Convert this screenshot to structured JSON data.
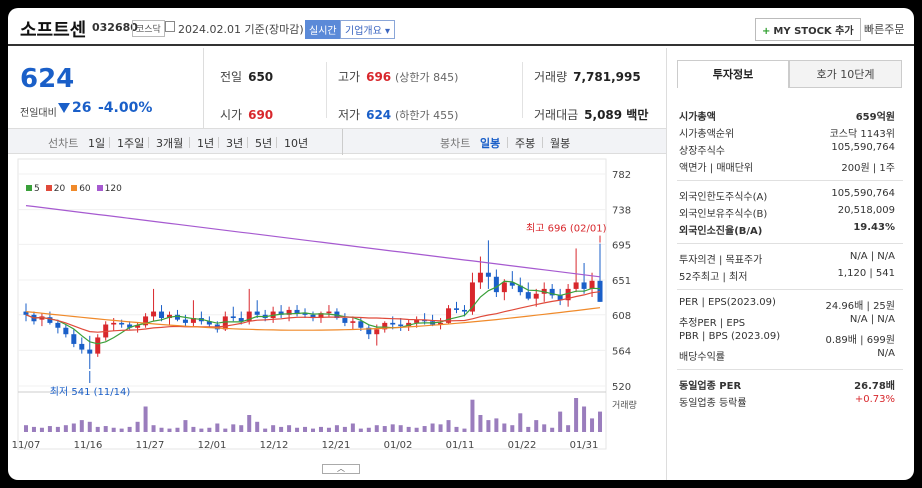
{
  "header": {
    "name": "소프트센",
    "code": "032680",
    "market": "코스닥",
    "date": "2024.02.01 기준(장마감)",
    "realtime": "실시간",
    "company_info": "기업개요",
    "mystock": "MY STOCK 추가",
    "quick_order": "빠른주문"
  },
  "price": {
    "current": "624",
    "change_label": "전일대비",
    "change": "26",
    "change_pct": "-4.00%"
  },
  "quote": {
    "prev_label": "전일",
    "prev": "650",
    "high_label": "고가",
    "high": "696",
    "upper_limit": "(상한가 845)",
    "volume_label": "거래량",
    "volume": "7,781,995",
    "open_label": "시가",
    "open": "690",
    "low_label": "저가",
    "low": "624",
    "lower_limit": "(하한가 455)",
    "amount_label": "거래대금",
    "amount": "5,089 백만"
  },
  "periods": {
    "label": "선차트",
    "items": [
      "1일",
      "1주일",
      "3개월",
      "1년",
      "3년",
      "5년",
      "10년"
    ],
    "candle_label": "봉차트",
    "candle_items": [
      "일봉",
      "주봉",
      "월봉"
    ],
    "active_candle": "일봉"
  },
  "chart_data": {
    "type": "candlestick",
    "legend": [
      "5",
      "20",
      "60",
      "120"
    ],
    "legend_colors": [
      "#3aa03a",
      "#e04a3a",
      "#f08a2a",
      "#a65ad0"
    ],
    "y_ticks": [
      782,
      738,
      695,
      651,
      608,
      564,
      520
    ],
    "ylim": [
      520,
      782
    ],
    "x_ticks": [
      "11/07",
      "11/16",
      "11/27",
      "12/01",
      "12/12",
      "12/21",
      "01/02",
      "01/11",
      "01/22",
      "01/31"
    ],
    "max_label": "최고 696 (02/01)",
    "min_label": "최저 541 (11/14)",
    "volume_label": "거래량",
    "candles": [
      [
        612,
        622,
        600,
        608
      ],
      [
        608,
        612,
        596,
        600
      ],
      [
        602,
        610,
        594,
        606
      ],
      [
        605,
        612,
        596,
        598
      ],
      [
        598,
        602,
        585,
        592
      ],
      [
        592,
        596,
        580,
        584
      ],
      [
        584,
        590,
        568,
        572
      ],
      [
        572,
        580,
        560,
        565
      ],
      [
        565,
        582,
        541,
        560
      ],
      [
        560,
        584,
        556,
        580
      ],
      [
        580,
        600,
        576,
        596
      ],
      [
        596,
        604,
        588,
        598
      ],
      [
        598,
        602,
        592,
        596
      ],
      [
        596,
        600,
        590,
        592
      ],
      [
        592,
        598,
        586,
        595
      ],
      [
        595,
        610,
        592,
        606
      ],
      [
        606,
        640,
        600,
        612
      ],
      [
        612,
        620,
        600,
        604
      ],
      [
        604,
        612,
        596,
        608
      ],
      [
        608,
        614,
        600,
        602
      ],
      [
        602,
        608,
        594,
        598
      ],
      [
        598,
        626,
        594,
        604
      ],
      [
        604,
        612,
        596,
        600
      ],
      [
        600,
        606,
        592,
        596
      ],
      [
        596,
        600,
        586,
        590
      ],
      [
        590,
        612,
        588,
        606
      ],
      [
        606,
        618,
        600,
        604
      ],
      [
        604,
        612,
        596,
        600
      ],
      [
        600,
        640,
        596,
        612
      ],
      [
        612,
        626,
        604,
        608
      ],
      [
        608,
        614,
        600,
        604
      ],
      [
        604,
        618,
        598,
        612
      ],
      [
        612,
        620,
        604,
        608
      ],
      [
        608,
        618,
        600,
        614
      ],
      [
        614,
        620,
        606,
        610
      ],
      [
        610,
        616,
        604,
        608
      ],
      [
        608,
        612,
        600,
        604
      ],
      [
        604,
        612,
        598,
        610
      ],
      [
        610,
        620,
        606,
        612
      ],
      [
        612,
        616,
        602,
        604
      ],
      [
        604,
        610,
        594,
        598
      ],
      [
        598,
        606,
        590,
        600
      ],
      [
        600,
        604,
        588,
        592
      ],
      [
        592,
        596,
        578,
        584
      ],
      [
        584,
        596,
        570,
        590
      ],
      [
        590,
        600,
        586,
        598
      ],
      [
        598,
        606,
        590,
        596
      ],
      [
        596,
        604,
        588,
        594
      ],
      [
        594,
        602,
        588,
        598
      ],
      [
        598,
        606,
        592,
        602
      ],
      [
        602,
        610,
        596,
        600
      ],
      [
        600,
        608,
        594,
        596
      ],
      [
        596,
        604,
        590,
        598
      ],
      [
        598,
        620,
        596,
        616
      ],
      [
        616,
        624,
        610,
        614
      ],
      [
        614,
        620,
        606,
        612
      ],
      [
        612,
        660,
        608,
        648
      ],
      [
        648,
        680,
        640,
        660
      ],
      [
        660,
        700,
        640,
        655
      ],
      [
        655,
        664,
        630,
        636
      ],
      [
        636,
        652,
        626,
        648
      ],
      [
        648,
        662,
        640,
        644
      ],
      [
        644,
        654,
        632,
        636
      ],
      [
        636,
        648,
        626,
        628
      ],
      [
        628,
        640,
        618,
        634
      ],
      [
        634,
        648,
        624,
        640
      ],
      [
        640,
        646,
        628,
        632
      ],
      [
        632,
        640,
        620,
        626
      ],
      [
        626,
        646,
        618,
        640
      ],
      [
        640,
        690,
        636,
        648
      ],
      [
        648,
        672,
        634,
        640
      ],
      [
        640,
        660,
        630,
        650
      ],
      [
        650,
        696,
        624,
        624
      ]
    ],
    "volumes": [
      8,
      6,
      5,
      7,
      6,
      8,
      10,
      14,
      12,
      6,
      7,
      5,
      4,
      6,
      12,
      30,
      8,
      5,
      4,
      5,
      14,
      6,
      4,
      5,
      10,
      4,
      9,
      8,
      20,
      12,
      4,
      8,
      6,
      8,
      5,
      6,
      4,
      6,
      5,
      8,
      6,
      10,
      4,
      5,
      8,
      7,
      9,
      8,
      6,
      5,
      7,
      10,
      9,
      14,
      6,
      4,
      38,
      20,
      14,
      16,
      10,
      8,
      22,
      6,
      14,
      9,
      5,
      24,
      8,
      40,
      30,
      16,
      24
    ]
  },
  "right": {
    "tab_active": "투자정보",
    "tab_other": "호가 10단계",
    "rows1": [
      {
        "k": "시가총액",
        "v": "659억원",
        "bold": true
      },
      {
        "k": "시가총액순위",
        "v": "코스닥 1143위"
      },
      {
        "k": "상장주식수",
        "v": "105,590,764"
      },
      {
        "k": "액면가 | 매매단위",
        "v": "200원 | 1주"
      }
    ],
    "rows2": [
      {
        "k": "외국인한도주식수(A)",
        "v": "105,590,764"
      },
      {
        "k": "외국인보유주식수(B)",
        "v": "20,518,009"
      },
      {
        "k": "외국인소진율(B/A)",
        "v": "19.43%",
        "bold": true
      }
    ],
    "rows3": [
      {
        "k": "투자의견 | 목표주가",
        "v": "N/A | N/A"
      },
      {
        "k": "52주최고 | 최저",
        "v": "1,120 | 541"
      }
    ],
    "rows4": [
      {
        "k": "PER | EPS(2023.09)",
        "v": "24.96배 | 25원"
      },
      {
        "k": "추정PER | EPS",
        "v": "N/A | N/A"
      },
      {
        "k": "PBR | BPS (2023.09)",
        "v": "0.89배 | 699원"
      },
      {
        "k": "배당수익률",
        "v": "N/A"
      }
    ],
    "rows5": [
      {
        "k": "동일업종 PER",
        "v": "26.78배",
        "bold": true
      },
      {
        "k": "동일업종 등락률",
        "v": "+0.73%",
        "red": true
      }
    ]
  }
}
